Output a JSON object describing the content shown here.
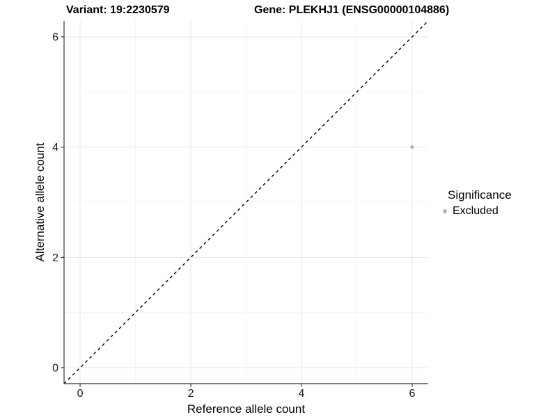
{
  "header": {
    "title_variant": "Variant: 19:2230579",
    "title_gene": "Gene: PLEKHJ1 (ENSG00000104886)"
  },
  "chart_data": {
    "type": "scatter",
    "title_left": "Variant: 19:2230579",
    "title_right": "Gene: PLEKHJ1 (ENSG00000104886)",
    "xlabel": "Reference allele count",
    "ylabel": "Alternative allele count",
    "xlim": [
      -0.29,
      6.29
    ],
    "ylim": [
      -0.29,
      6.29
    ],
    "x_major_ticks": [
      0,
      2,
      4,
      6
    ],
    "y_major_ticks": [
      0,
      2,
      4,
      6
    ],
    "x_minor_ticks": [
      1,
      3,
      5
    ],
    "y_minor_ticks": [
      1,
      3,
      5
    ],
    "grid": "major and minor, light grey on white",
    "points": [
      {
        "x": 6,
        "y": 4,
        "series": "Excluded"
      }
    ],
    "reference_line": {
      "kind": "identity",
      "slope": 1,
      "intercept": 0,
      "style": "dashed",
      "color": "#000000"
    },
    "legend": {
      "title": "Significance",
      "position": "right",
      "entries": [
        {
          "label": "Excluded",
          "color": "#b3b3b3"
        }
      ]
    },
    "colors": {
      "point": "#b3b3b3",
      "grid_major": "#e6e6e6",
      "grid_minor": "#f4f4f4",
      "axis_line": "#333333",
      "tick_text": "#1a1a1a"
    }
  }
}
